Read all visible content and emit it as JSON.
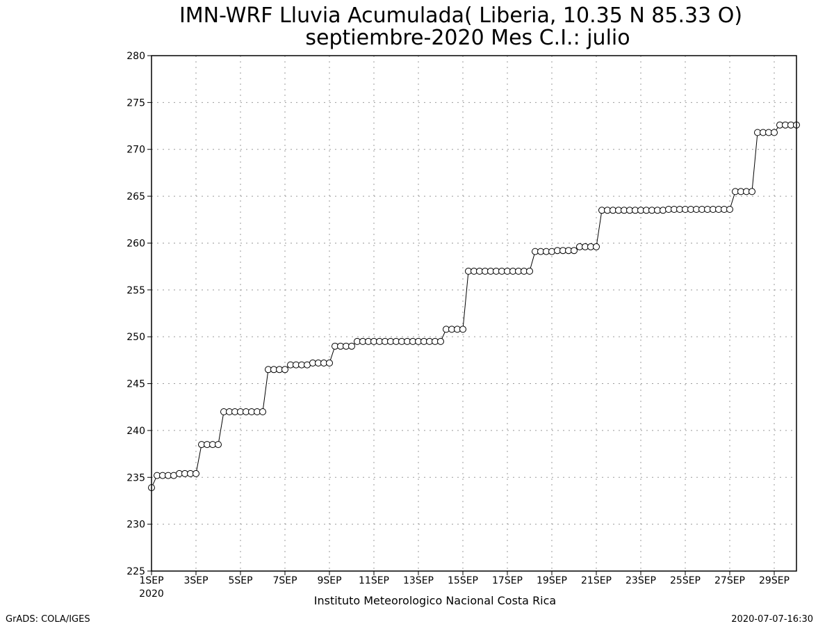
{
  "chart_data": {
    "type": "line",
    "title": "IMN-WRF  Lluvia Acumulada( Liberia, 10.35  N 85.33  O)",
    "subtitle": "septiembre-2020 Mes C.I.: julio",
    "x_tick_labels": [
      "1SEP",
      "3SEP",
      "5SEP",
      "7SEP",
      "9SEP",
      "11SEP",
      "13SEP",
      "15SEP",
      "17SEP",
      "19SEP",
      "21SEP",
      "23SEP",
      "25SEP",
      "27SEP",
      "29SEP"
    ],
    "x_tick_days": [
      1,
      3,
      5,
      7,
      9,
      11,
      13,
      15,
      17,
      19,
      21,
      23,
      25,
      27,
      29
    ],
    "x_year_label": "2020",
    "xlim": [
      1,
      30
    ],
    "ylim": [
      225,
      280
    ],
    "y_ticks": [
      225,
      230,
      235,
      240,
      245,
      250,
      255,
      260,
      265,
      270,
      275,
      280
    ],
    "grid": true,
    "x_step_days": 0.25,
    "series": [
      {
        "values": [
          233.9,
          235.2,
          235.2,
          235.2,
          235.2,
          235.4,
          235.4,
          235.4,
          235.4,
          238.5,
          238.5,
          238.5,
          238.5,
          242.0,
          242.0,
          242.0,
          242.0,
          242.0,
          242.0,
          242.0,
          242.0,
          246.5,
          246.5,
          246.5,
          246.5,
          247.0,
          247.0,
          247.0,
          247.0,
          247.2,
          247.2,
          247.2,
          247.2,
          249.0,
          249.0,
          249.0,
          249.0,
          249.5,
          249.5,
          249.5,
          249.5,
          249.5,
          249.5,
          249.5,
          249.5,
          249.5,
          249.5,
          249.5,
          249.5,
          249.5,
          249.5,
          249.5,
          249.5,
          250.8,
          250.8,
          250.8,
          250.8,
          257.0,
          257.0,
          257.0,
          257.0,
          257.0,
          257.0,
          257.0,
          257.0,
          257.0,
          257.0,
          257.0,
          257.0,
          259.1,
          259.1,
          259.1,
          259.1,
          259.2,
          259.2,
          259.2,
          259.2,
          259.6,
          259.6,
          259.6,
          259.6,
          263.5,
          263.5,
          263.5,
          263.5,
          263.5,
          263.5,
          263.5,
          263.5,
          263.5,
          263.5,
          263.5,
          263.5,
          263.6,
          263.6,
          263.6,
          263.6,
          263.6,
          263.6,
          263.6,
          263.6,
          263.6,
          263.6,
          263.6,
          263.6,
          265.5,
          265.5,
          265.5,
          265.5,
          271.8,
          271.8,
          271.8,
          271.8,
          272.6,
          272.6,
          272.6,
          272.6
        ]
      }
    ]
  },
  "footer": {
    "institution": "Instituto Meteorologico Nacional Costa Rica",
    "left_credit": "GrADS: COLA/IGES",
    "timestamp": "2020-07-07-16:30"
  }
}
